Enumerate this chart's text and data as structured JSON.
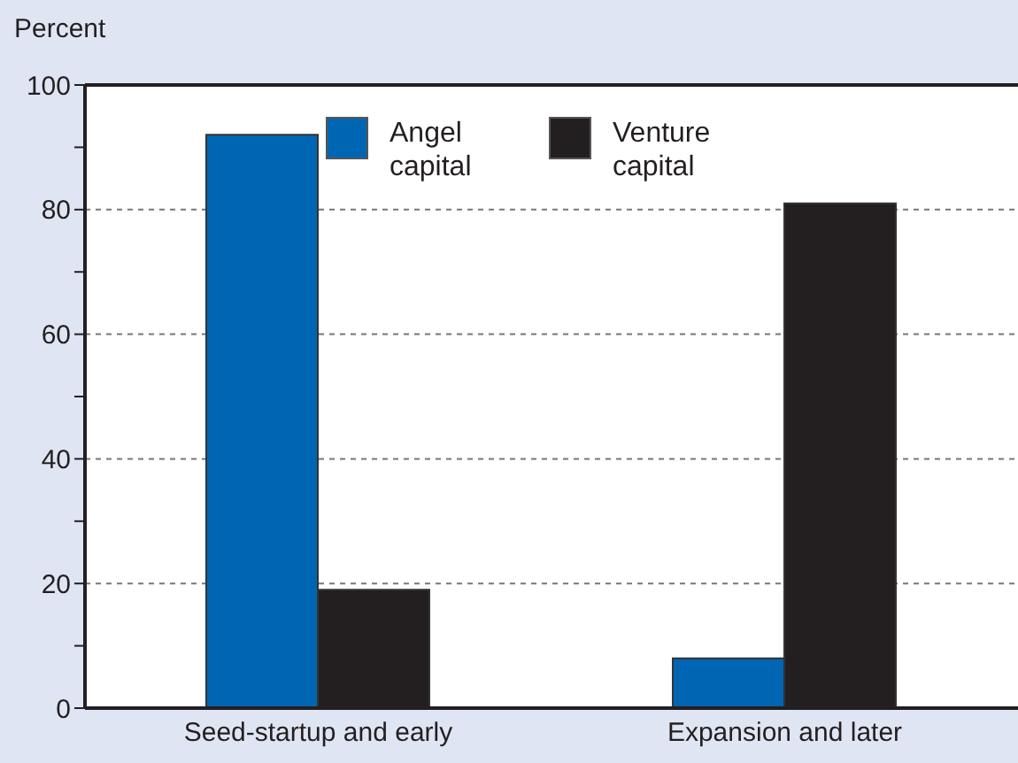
{
  "chart_data": {
    "type": "bar",
    "ylabel": "Percent",
    "categories": [
      "Seed-startup and early",
      "Expansion and later"
    ],
    "series": [
      {
        "name": "Angel capital",
        "color": "#0066b3",
        "values": [
          92,
          8
        ]
      },
      {
        "name": "Venture capital",
        "color": "#231f20",
        "values": [
          19,
          81
        ]
      }
    ],
    "ylim": [
      0,
      100
    ],
    "yticks": [
      0,
      {
        "value": 10,
        "label": null
      },
      20,
      {
        "value": 30,
        "label": null
      },
      40,
      {
        "value": 50,
        "label": null
      },
      60,
      {
        "value": 70,
        "label": null
      },
      80,
      {
        "value": 90,
        "label": null
      },
      100
    ],
    "grid": "y",
    "legend": "top"
  }
}
